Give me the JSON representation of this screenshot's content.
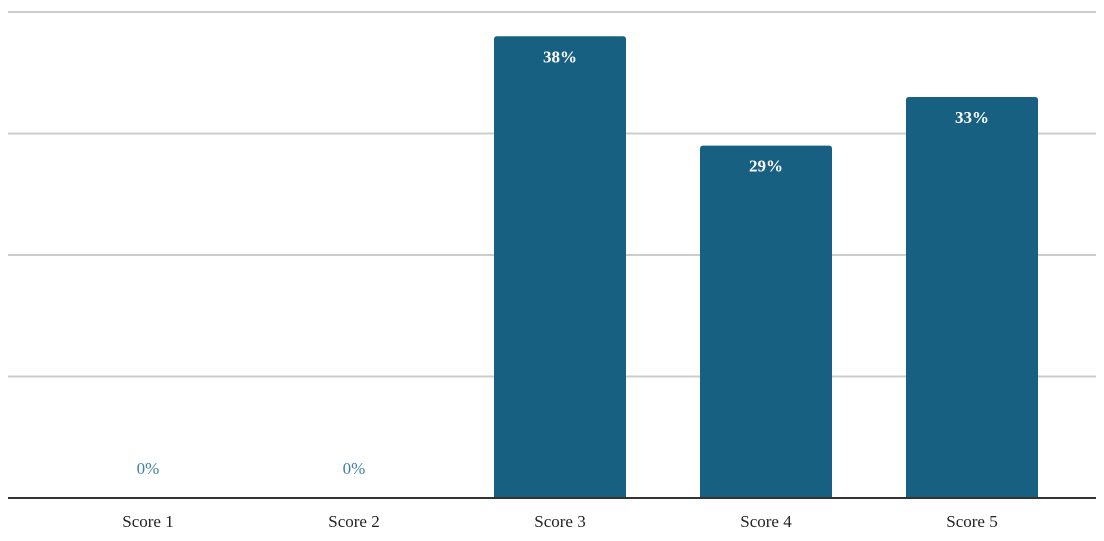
{
  "chart_data": {
    "type": "bar",
    "categories": [
      "Score 1",
      "Score 2",
      "Score 3",
      "Score 4",
      "Score 5"
    ],
    "values": [
      0,
      0,
      38,
      29,
      33
    ],
    "data_labels": [
      "0%",
      "0%",
      "38%",
      "29%",
      "33%"
    ],
    "title": "",
    "xlabel": "",
    "ylabel": "",
    "ylim": [
      0,
      40
    ],
    "yticks": [
      0,
      10,
      20,
      30,
      40
    ],
    "grid": true,
    "legend": "none",
    "colors": {
      "bar": "#176082",
      "label_inside": "#ffffff",
      "label_outside": "#3f7fa8",
      "grid": "#cccccc",
      "baseline": "#333333"
    }
  }
}
